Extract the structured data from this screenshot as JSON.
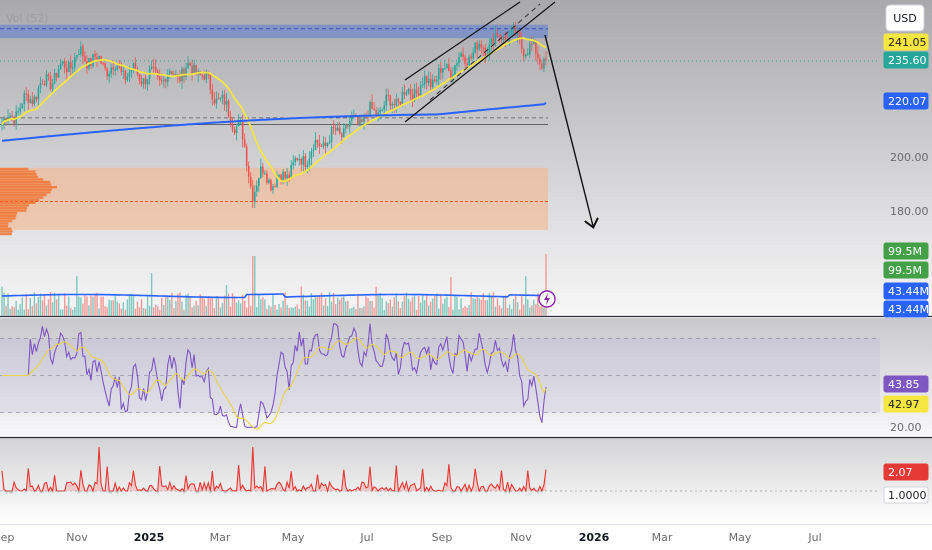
{
  "chart_data": [
    {
      "type": "candlestick",
      "title": "",
      "currency_button": "USD",
      "x_tick_labels": [
        "Sep",
        "Nov",
        "2025",
        "Mar",
        "May",
        "Jul",
        "Sep",
        "Nov",
        "2026",
        "Mar",
        "May",
        "Jul"
      ],
      "y_tick_labels": [
        "200.00",
        "180.00"
      ],
      "y_range": [
        165,
        250
      ],
      "price_tags": [
        {
          "value": "241.05",
          "color": "#f5e642",
          "text_color": "#222222"
        },
        {
          "value": "235.60",
          "color": "#26a69a",
          "text_color": "#ffffff"
        },
        {
          "value": "220.07",
          "color": "#2962ff",
          "text_color": "#ffffff"
        }
      ],
      "last_close": 235.6,
      "moving_averages": [
        {
          "color": "#f5e642",
          "last_value": 241.05
        },
        {
          "color": "#2962ff",
          "last_value": 220.07
        }
      ],
      "price_series": [
        {
          "date": "2024-09",
          "close": 212
        },
        {
          "date": "2024-10",
          "close": 226
        },
        {
          "date": "2024-11",
          "close": 238
        },
        {
          "date": "2024-12",
          "close": 232
        },
        {
          "date": "2025-01",
          "close": 229
        },
        {
          "date": "2025-02",
          "close": 233
        },
        {
          "date": "2025-03",
          "close": 213
        },
        {
          "date": "2025-04",
          "close": 190
        },
        {
          "date": "2025-05",
          "close": 203
        },
        {
          "date": "2025-06",
          "close": 212
        },
        {
          "date": "2025-07",
          "close": 220
        },
        {
          "date": "2025-08",
          "close": 228
        },
        {
          "date": "2025-09",
          "close": 238
        },
        {
          "date": "2025-10",
          "close": 246
        },
        {
          "date": "2025-11",
          "close": 235.6
        }
      ],
      "annotations": [
        {
          "type": "rising-channel"
        },
        {
          "type": "arrow-down",
          "target_price": 180
        }
      ],
      "zones": [
        {
          "type": "horizontal-band",
          "from": 244,
          "to": 249,
          "color": "#5b7bd6"
        },
        {
          "type": "volume-profile-zone",
          "from": 173,
          "to": 196,
          "color": "#f6b58e"
        }
      ]
    },
    {
      "type": "bar",
      "indicator": "Volume",
      "legend": "Vol (52)",
      "tags": [
        {
          "value": "99.5M",
          "color": "#43a047"
        },
        {
          "value": "99.5M",
          "color": "#43a047"
        },
        {
          "value": "43.44M",
          "color": "#2962ff"
        },
        {
          "value": "43.44M",
          "color": "#2962ff"
        }
      ]
    },
    {
      "type": "line",
      "indicator": "RSI",
      "y_tick_labels": [
        "20.00"
      ],
      "y_range": [
        20,
        80
      ],
      "series": [
        {
          "last_value": 43.85,
          "color": "#7e57c2"
        },
        {
          "last_value": 42.97,
          "color": "#f5e642"
        }
      ],
      "levels": [
        70,
        50,
        30
      ]
    },
    {
      "type": "area",
      "indicator": "Relative Volume",
      "tags": [
        {
          "value": "2.07",
          "color": "#e53935",
          "text_color": "#ffffff"
        },
        {
          "value": "1.0000",
          "color": "#ffffff",
          "text_color": "#222222"
        }
      ],
      "baseline": 1.0
    }
  ]
}
